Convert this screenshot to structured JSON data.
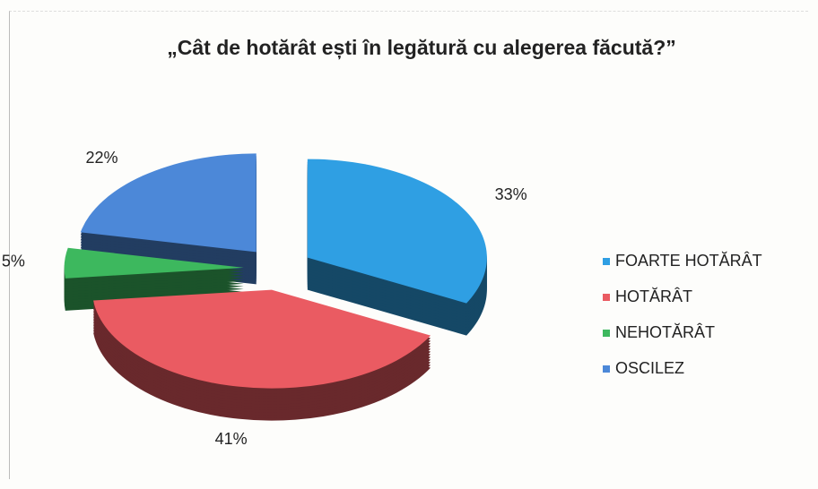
{
  "chart_data": {
    "type": "pie",
    "title": "„Cât de hotărât ești în legătură cu alegerea făcută?”",
    "categories": [
      "FOARTE HOTĂRÂT",
      "HOTĂRÂT",
      "NEHOTĂRÂT",
      "OSCILEZ"
    ],
    "values": [
      33,
      41,
      5,
      22
    ],
    "value_labels": [
      "33%",
      "41%",
      "5%",
      "22%"
    ],
    "colors": [
      "#2f9fe3",
      "#ea5b62",
      "#3db85e",
      "#4c88d8"
    ],
    "legend": "right"
  }
}
